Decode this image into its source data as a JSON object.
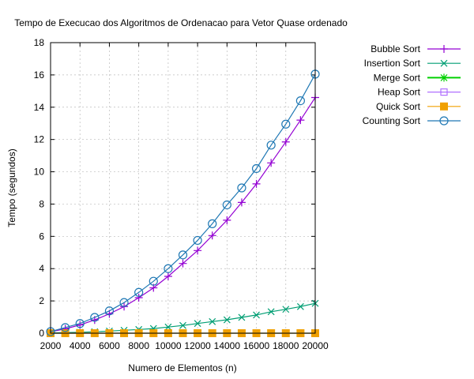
{
  "chart_data": {
    "type": "line",
    "title": "Tempo de Execucao dos Algoritmos de Ordenacao para Vetor Quase ordenado",
    "xlabel": "Numero de Elementos (n)",
    "ylabel": "Tempo (segundos)",
    "xlim": [
      2000,
      20000
    ],
    "ylim": [
      0,
      18
    ],
    "xticks": [
      "2000",
      "4000",
      "6000",
      "8000",
      "10000",
      "12000",
      "14000",
      "16000",
      "18000",
      "20000"
    ],
    "yticks": [
      "0",
      "2",
      "4",
      "6",
      "8",
      "10",
      "12",
      "14",
      "16",
      "18"
    ],
    "grid": true,
    "legend_position": "top-right, outside plot",
    "x": [
      2000,
      3000,
      4000,
      5000,
      6000,
      7000,
      8000,
      9000,
      10000,
      11000,
      12000,
      13000,
      14000,
      15000,
      16000,
      17000,
      18000,
      19000,
      20000
    ],
    "series": [
      {
        "name": "Bubble Sort",
        "color": "#9400d3",
        "marker": "plus",
        "values": [
          0.09,
          0.27,
          0.51,
          0.82,
          1.2,
          1.65,
          2.2,
          2.81,
          3.52,
          4.32,
          5.12,
          6.05,
          7.0,
          8.1,
          9.25,
          10.55,
          11.85,
          13.2,
          14.6
        ]
      },
      {
        "name": "Insertion Sort",
        "color": "#009e73",
        "marker": "x",
        "values": [
          0.02,
          0.04,
          0.06,
          0.09,
          0.13,
          0.18,
          0.23,
          0.29,
          0.38,
          0.48,
          0.6,
          0.72,
          0.83,
          0.98,
          1.13,
          1.33,
          1.48,
          1.65,
          1.85
        ]
      },
      {
        "name": "Merge Sort",
        "color": "#00d000",
        "marker": "star",
        "values": [
          0.0,
          0.0,
          0.0,
          0.0,
          0.0,
          0.0,
          0.0,
          0.0,
          0.0,
          0.0,
          0.0,
          0.0,
          0.0,
          0.0,
          0.0,
          0.0,
          0.0,
          0.0,
          0.0
        ]
      },
      {
        "name": "Heap Sort",
        "color": "#b070ff",
        "marker": "square-open",
        "values": [
          0.0,
          0.0,
          0.0,
          0.0,
          0.0,
          0.0,
          0.0,
          0.0,
          0.0,
          0.0,
          0.0,
          0.0,
          0.0,
          0.0,
          0.0,
          0.0,
          0.0,
          0.0,
          0.0
        ]
      },
      {
        "name": "Quick Sort",
        "color": "#f0a000",
        "marker": "square-filled",
        "values": [
          0.0,
          0.0,
          0.0,
          0.0,
          0.0,
          0.0,
          0.0,
          0.0,
          0.0,
          0.0,
          0.0,
          0.0,
          0.0,
          0.0,
          0.0,
          0.0,
          0.0,
          0.0,
          0.0
        ]
      },
      {
        "name": "Counting Sort",
        "color": "#1f78b4",
        "marker": "circle-open",
        "values": [
          0.1,
          0.35,
          0.6,
          0.98,
          1.38,
          1.9,
          2.53,
          3.22,
          4.0,
          4.85,
          5.75,
          6.78,
          7.95,
          9.0,
          10.2,
          11.65,
          12.95,
          14.4,
          16.05
        ]
      }
    ]
  }
}
